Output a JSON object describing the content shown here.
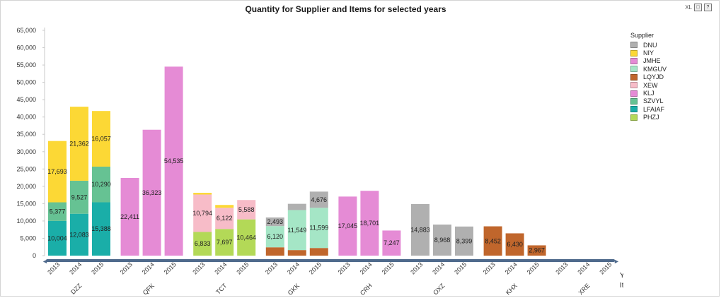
{
  "window": {
    "title": "Quantity for Supplier and Items for selected years",
    "tools": {
      "xl_label": "XL",
      "restore_label": "□",
      "help_label": "?"
    }
  },
  "legend": {
    "title": "Supplier",
    "items": [
      {
        "name": "DNU",
        "color": "#b0b0b0"
      },
      {
        "name": "NIY",
        "color": "#fcd835"
      },
      {
        "name": "JMHE",
        "color": "#e58bd5"
      },
      {
        "name": "KMGUV",
        "color": "#a5e6c6"
      },
      {
        "name": "LQYJD",
        "color": "#c0662c"
      },
      {
        "name": "XEW",
        "color": "#f7bcc8"
      },
      {
        "name": "KLJ",
        "color": "#e58bd5"
      },
      {
        "name": "SZVYL",
        "color": "#66c293"
      },
      {
        "name": "LFAIAF",
        "color": "#1aaea8"
      },
      {
        "name": "PHZJ",
        "color": "#b3d957"
      }
    ]
  },
  "chart_data": {
    "type": "bar",
    "stacked": true,
    "title": "Quantity for Supplier and Items for selected years",
    "xlabel": "Year",
    "xlabel2": "Item Code",
    "ylim": [
      0,
      65000
    ],
    "yticks": [
      "0",
      "5,000",
      "10,000",
      "15,000",
      "20,000",
      "25,000",
      "30,000",
      "35,000",
      "40,000",
      "45,000",
      "50,000",
      "55,000",
      "60,000",
      "65,000"
    ],
    "grid": false,
    "legend_position": "right",
    "groups": [
      {
        "item": "DZZ",
        "bars": [
          {
            "year": "2013",
            "segments": [
              {
                "supplier": "LFAIAF",
                "value": 10004,
                "label": "10,004"
              },
              {
                "supplier": "SZVYL",
                "value": 5377,
                "label": "5,377"
              },
              {
                "supplier": "NIY",
                "value": 17693,
                "label": "17,693"
              }
            ]
          },
          {
            "year": "2014",
            "segments": [
              {
                "supplier": "LFAIAF",
                "value": 12083,
                "label": "12,083"
              },
              {
                "supplier": "SZVYL",
                "value": 9527,
                "label": "9,527"
              },
              {
                "supplier": "NIY",
                "value": 21362,
                "label": "21,362"
              }
            ]
          },
          {
            "year": "2015",
            "segments": [
              {
                "supplier": "LFAIAF",
                "value": 15388,
                "label": "15,388"
              },
              {
                "supplier": "SZVYL",
                "value": 10290,
                "label": "10,290"
              },
              {
                "supplier": "NIY",
                "value": 16057,
                "label": "16,057"
              }
            ]
          }
        ]
      },
      {
        "item": "QFK",
        "bars": [
          {
            "year": "2013",
            "segments": [
              {
                "supplier": "KLJ",
                "value": 22411,
                "label": "22,411"
              }
            ]
          },
          {
            "year": "2014",
            "segments": [
              {
                "supplier": "KLJ",
                "value": 36323,
                "label": "36,323"
              }
            ]
          },
          {
            "year": "2015",
            "segments": [
              {
                "supplier": "KLJ",
                "value": 54535,
                "label": "54,535"
              }
            ]
          }
        ]
      },
      {
        "item": "TCT",
        "bars": [
          {
            "year": "2013",
            "segments": [
              {
                "supplier": "PHZJ",
                "value": 6833,
                "label": "6,833"
              },
              {
                "supplier": "XEW",
                "value": 10794,
                "label": "10,794"
              },
              {
                "supplier": "NIY",
                "value": 500,
                "label": ""
              }
            ]
          },
          {
            "year": "2014",
            "segments": [
              {
                "supplier": "PHZJ",
                "value": 7697,
                "label": "7,697"
              },
              {
                "supplier": "XEW",
                "value": 6122,
                "label": "6,122"
              },
              {
                "supplier": "NIY",
                "value": 800,
                "label": ""
              }
            ]
          },
          {
            "year": "2015",
            "segments": [
              {
                "supplier": "PHZJ",
                "value": 10464,
                "label": "10,464"
              },
              {
                "supplier": "XEW",
                "value": 5588,
                "label": "5,588"
              }
            ]
          }
        ]
      },
      {
        "item": "GKK",
        "bars": [
          {
            "year": "2013",
            "segments": [
              {
                "supplier": "LQYJD",
                "value": 2400,
                "label": ""
              },
              {
                "supplier": "KMGUV",
                "value": 6120,
                "label": "6,120"
              },
              {
                "supplier": "DNU",
                "value": 2493,
                "label": "2,493"
              }
            ]
          },
          {
            "year": "2014",
            "segments": [
              {
                "supplier": "LQYJD",
                "value": 1600,
                "label": ""
              },
              {
                "supplier": "KMGUV",
                "value": 11549,
                "label": "11,549"
              },
              {
                "supplier": "DNU",
                "value": 1800,
                "label": ""
              }
            ]
          },
          {
            "year": "2015",
            "segments": [
              {
                "supplier": "LQYJD",
                "value": 2200,
                "label": ""
              },
              {
                "supplier": "KMGUV",
                "value": 11599,
                "label": "11,599"
              },
              {
                "supplier": "DNU",
                "value": 4676,
                "label": "4,676"
              }
            ]
          }
        ]
      },
      {
        "item": "CRH",
        "bars": [
          {
            "year": "2013",
            "segments": [
              {
                "supplier": "JMHE",
                "value": 17045,
                "label": "17,045"
              }
            ]
          },
          {
            "year": "2014",
            "segments": [
              {
                "supplier": "JMHE",
                "value": 18701,
                "label": "18,701"
              }
            ]
          },
          {
            "year": "2015",
            "segments": [
              {
                "supplier": "JMHE",
                "value": 7247,
                "label": "7,247"
              }
            ]
          }
        ]
      },
      {
        "item": "OXZ",
        "bars": [
          {
            "year": "2013",
            "segments": [
              {
                "supplier": "DNU",
                "value": 14883,
                "label": "14,883"
              }
            ]
          },
          {
            "year": "2014",
            "segments": [
              {
                "supplier": "DNU",
                "value": 8968,
                "label": "8,968"
              }
            ]
          },
          {
            "year": "2015",
            "segments": [
              {
                "supplier": "DNU",
                "value": 8399,
                "label": "8,399"
              }
            ]
          }
        ]
      },
      {
        "item": "KHX",
        "bars": [
          {
            "year": "2013",
            "segments": [
              {
                "supplier": "LQYJD",
                "value": 8452,
                "label": "8,452"
              }
            ]
          },
          {
            "year": "2014",
            "segments": [
              {
                "supplier": "LQYJD",
                "value": 6430,
                "label": "6,430"
              }
            ]
          },
          {
            "year": "2015",
            "segments": [
              {
                "supplier": "LQYJD",
                "value": 2967,
                "label": "2,967"
              }
            ]
          }
        ]
      },
      {
        "item": "XRE",
        "bars": [
          {
            "year": "2013",
            "segments": []
          },
          {
            "year": "2014",
            "segments": []
          },
          {
            "year": "2015",
            "segments": []
          }
        ]
      }
    ],
    "scrollbar": {
      "left_arrow": "◄",
      "right_arrow": "►"
    }
  }
}
